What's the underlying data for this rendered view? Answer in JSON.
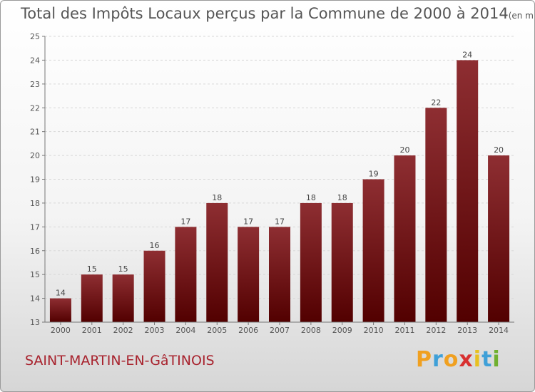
{
  "title": "Total des Impôts Locaux perçus par la Commune de 2000 à 2014",
  "unit_note": "(en milliers d'€)",
  "commune_name": "SAINT-MARTIN-EN-GâTINOIS",
  "logo": {
    "text": "Proxiti",
    "letters": [
      "P",
      "r",
      "o",
      "x",
      "i",
      "t",
      "i"
    ],
    "colors": [
      "#f0a020",
      "#3fa0d8",
      "#f0a020",
      "#d83030",
      "#e8c020",
      "#3fa0d8",
      "#70b030"
    ]
  },
  "chart_data": {
    "type": "bar",
    "categories": [
      "2000",
      "2001",
      "2002",
      "2003",
      "2004",
      "2005",
      "2006",
      "2007",
      "2008",
      "2009",
      "2010",
      "2011",
      "2012",
      "2013",
      "2014"
    ],
    "values": [
      14,
      15,
      15,
      16,
      17,
      18,
      17,
      17,
      18,
      18,
      19,
      20,
      22,
      24,
      20
    ],
    "ylim": [
      13,
      25
    ],
    "yticks": [
      13,
      14,
      15,
      16,
      17,
      18,
      19,
      20,
      21,
      22,
      23,
      24,
      25
    ],
    "grid": true,
    "bar_color_top": "#8e2e32",
    "bar_color_bottom": "#520000"
  }
}
